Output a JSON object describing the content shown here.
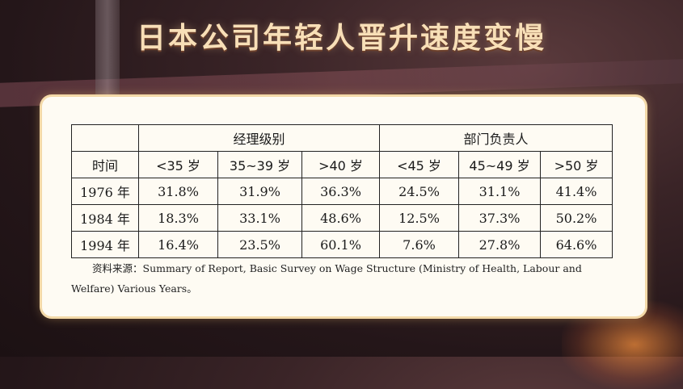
{
  "title": "日本公司年轻人晋升速度变慢",
  "table": {
    "groups": [
      "经理级别",
      "部门负责人"
    ],
    "row_header": "时间",
    "columns": [
      "<35 岁",
      "35~39 岁",
      ">40 岁",
      "<45 岁",
      "45~49 岁",
      ">50 岁"
    ],
    "rows": [
      {
        "year": "1976 年",
        "values": [
          "31.8%",
          "31.9%",
          "36.3%",
          "24.5%",
          "31.1%",
          "41.4%"
        ]
      },
      {
        "year": "1984 年",
        "values": [
          "18.3%",
          "33.1%",
          "48.6%",
          "12.5%",
          "37.3%",
          "50.2%"
        ]
      },
      {
        "year": "1994 年",
        "values": [
          "16.4%",
          "23.5%",
          "60.1%",
          "7.6%",
          "27.8%",
          "64.6%"
        ]
      }
    ]
  },
  "source": {
    "label": "资料来源：",
    "text": "Summary of Report, Basic Survey on Wage Structure (Ministry of Health, Labour and Welfare) Various Years。"
  }
}
